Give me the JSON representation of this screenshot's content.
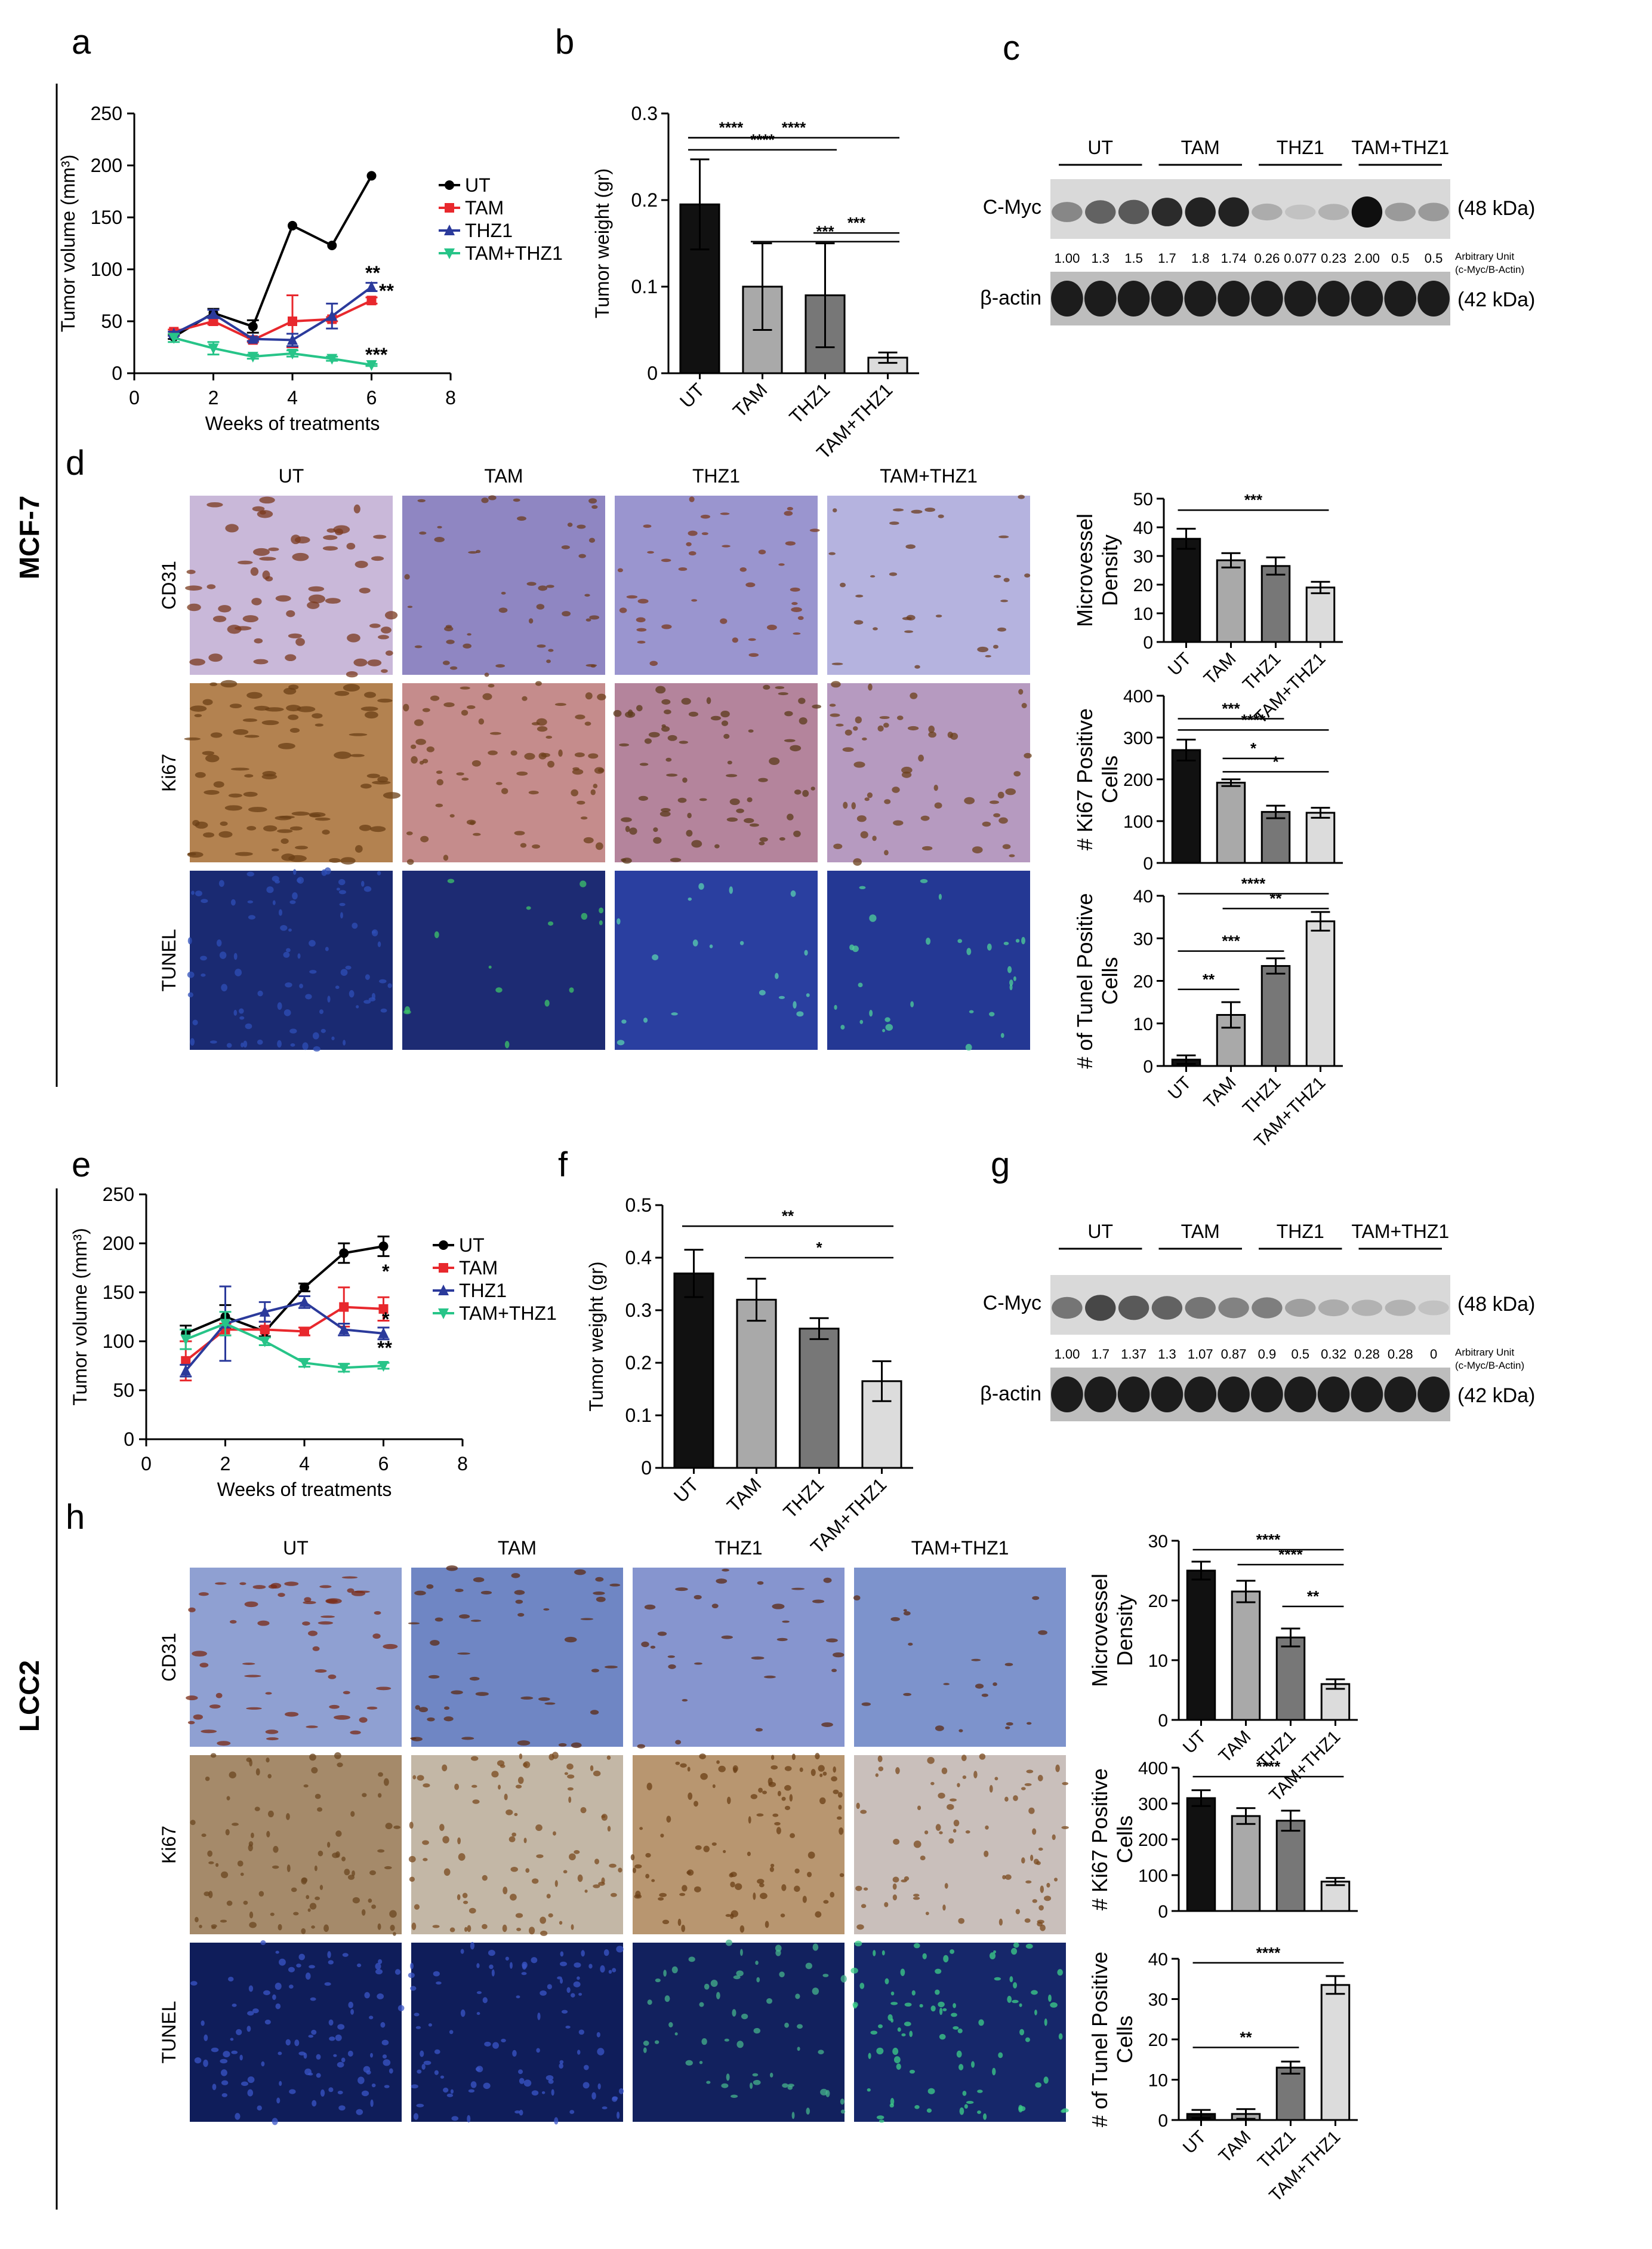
{
  "groups": [
    {
      "name": "MCF-7"
    },
    {
      "name": "LCC2"
    }
  ],
  "panel_letters": [
    "a",
    "b",
    "c",
    "d",
    "e",
    "f",
    "g",
    "h"
  ],
  "colors": {
    "UT": "#000000",
    "TAM": "#e8282d",
    "THZ1": "#2b3a9b",
    "TAM+THZ1": "#27c488",
    "bar_UT": "#111111",
    "bar_TAM": "#a9a9a9",
    "bar_THZ1": "#777777",
    "bar_TAMTHZ1": "#dcdcdc"
  },
  "chart_data": [
    {
      "id": "a",
      "type": "line",
      "xlabel": "Weeks of treatments",
      "ylabel": "Tumor volume (mm³)",
      "xlim": [
        0,
        8
      ],
      "ylim": [
        0,
        250
      ],
      "xticks": [
        0,
        2,
        4,
        6,
        8
      ],
      "yticks": [
        0,
        50,
        100,
        150,
        200,
        250
      ],
      "x": [
        1,
        2,
        3,
        4,
        5,
        6
      ],
      "legend": [
        "UT",
        "TAM",
        "THZ1",
        "TAM+THZ1"
      ],
      "series": [
        {
          "name": "UT",
          "values": [
            35,
            58,
            45,
            142,
            123,
            190
          ],
          "err": [
            2,
            4,
            6,
            0,
            0,
            0
          ]
        },
        {
          "name": "TAM",
          "values": [
            40,
            50,
            32,
            50,
            52,
            70
          ],
          "err": [
            2,
            3,
            2,
            25,
            2,
            3
          ]
        },
        {
          "name": "THZ1",
          "values": [
            38,
            57,
            33,
            32,
            55,
            83
          ],
          "err": [
            2,
            4,
            2,
            6,
            12,
            4
          ]
        },
        {
          "name": "TAM+THZ1",
          "values": [
            34,
            24,
            16,
            19,
            14,
            8
          ],
          "err": [
            4,
            6,
            2,
            3,
            2,
            1
          ]
        }
      ],
      "annotations": [
        "**",
        "**",
        "***"
      ]
    },
    {
      "id": "b",
      "type": "bar",
      "ylabel": "Tumor weight (gr)",
      "ylim": [
        0,
        0.3
      ],
      "yticks": [
        "0",
        "0.1",
        "0.2",
        "0.3"
      ],
      "categories": [
        "UT",
        "TAM",
        "THZ1",
        "TAM+THZ1"
      ],
      "values": [
        0.195,
        0.1,
        0.09,
        0.018
      ],
      "err": [
        0.052,
        0.05,
        0.06,
        0.006
      ],
      "brackets": [
        {
          "l": 0,
          "r": 1,
          "y": 0.272,
          "t": "****"
        },
        {
          "l": 0,
          "r": 2,
          "y": 0.258,
          "t": "****"
        },
        {
          "l": 0,
          "r": 3,
          "y": 0.272,
          "t": "****"
        },
        {
          "l": 2,
          "r": 3,
          "y": 0.162,
          "t": "***"
        },
        {
          "l": 1,
          "r": 3,
          "y": 0.152,
          "t": "***"
        }
      ]
    },
    {
      "id": "c",
      "type": "table",
      "title": "Western blot",
      "groups": [
        "UT",
        "TAM",
        "THZ1",
        "TAM+THZ1"
      ],
      "rows": [
        "C-Myc",
        "β-actin"
      ],
      "sizes": [
        "(48 kDa)",
        "(42 kDa)"
      ],
      "values": [
        "1.00",
        "1.3",
        "1.5",
        "1.7",
        "1.8",
        "1.74",
        "0.26",
        "0.077",
        "0.23",
        "2.00",
        "0.5",
        "0.5"
      ],
      "unit_label": [
        "Arbitrary Unit",
        "(c-Myc/B-Actin)"
      ],
      "intensity": [
        0.35,
        0.55,
        0.6,
        0.85,
        0.9,
        0.9,
        0.15,
        0.03,
        0.12,
        1.0,
        0.25,
        0.25
      ]
    },
    {
      "id": "d_mvd",
      "type": "bar",
      "ylabel": "Microvessel Density",
      "ylim": [
        0,
        50
      ],
      "yticks": [
        "0",
        "10",
        "20",
        "30",
        "40",
        "50"
      ],
      "categories": [
        "UT",
        "TAM",
        "THZ1",
        "TAM+THZ1"
      ],
      "values": [
        36,
        28.5,
        26.5,
        19
      ],
      "err": [
        3.5,
        2.5,
        3,
        2
      ],
      "brackets": [
        {
          "l": 0,
          "r": 3,
          "y": 46,
          "t": "***"
        }
      ]
    },
    {
      "id": "d_ki67",
      "type": "bar",
      "ylabel": "# Ki67 Positive Cells",
      "ylim": [
        0,
        400
      ],
      "yticks": [
        "0",
        "100",
        "200",
        "300",
        "400"
      ],
      "categories": [
        "UT",
        "TAM",
        "THZ1",
        "TAM+THZ1"
      ],
      "values": [
        270,
        192,
        122,
        120
      ],
      "err": [
        25,
        8,
        15,
        12
      ],
      "brackets": [
        {
          "l": 0,
          "r": 2,
          "y": 345,
          "t": "***"
        },
        {
          "l": 0,
          "r": 3,
          "y": 318,
          "t": "****"
        },
        {
          "l": 1,
          "r": 2,
          "y": 250,
          "t": "*"
        },
        {
          "l": 1,
          "r": 3,
          "y": 218,
          "t": "*"
        }
      ]
    },
    {
      "id": "d_tunel",
      "type": "bar",
      "ylabel": "# of Tunel Positive Cells",
      "ylim": [
        0,
        40
      ],
      "yticks": [
        "0",
        "10",
        "20",
        "30",
        "40"
      ],
      "categories": [
        "UT",
        "TAM",
        "THZ1",
        "TAM+THZ1"
      ],
      "values": [
        1.5,
        12,
        23.5,
        34
      ],
      "err": [
        1,
        3,
        1.8,
        2.2
      ],
      "brackets": [
        {
          "l": 0,
          "r": 3,
          "y": 40.5,
          "t": "****"
        },
        {
          "l": 1,
          "r": 3,
          "y": 37,
          "t": "**"
        },
        {
          "l": 0,
          "r": 2,
          "y": 27,
          "t": "***"
        },
        {
          "l": 0,
          "r": 1,
          "y": 18,
          "t": "**"
        }
      ]
    },
    {
      "id": "e",
      "type": "line",
      "xlabel": "Weeks of treatments",
      "ylabel": "Tumor volume (mm³)",
      "xlim": [
        0,
        8
      ],
      "ylim": [
        0,
        250
      ],
      "xticks": [
        0,
        2,
        4,
        6,
        8
      ],
      "yticks": [
        0,
        50,
        100,
        150,
        200,
        250
      ],
      "x": [
        1,
        2,
        3,
        4,
        5,
        6
      ],
      "legend": [
        "UT",
        "TAM",
        "THZ1",
        "TAM+THZ1"
      ],
      "series": [
        {
          "name": "UT",
          "values": [
            108,
            125,
            110,
            155,
            190,
            197
          ],
          "err": [
            8,
            12,
            5,
            4,
            10,
            10
          ]
        },
        {
          "name": "TAM",
          "values": [
            80,
            112,
            112,
            110,
            135,
            133
          ],
          "err": [
            20,
            6,
            8,
            4,
            20,
            12
          ]
        },
        {
          "name": "THZ1",
          "values": [
            70,
            118,
            130,
            140,
            112,
            108
          ],
          "err": [
            6,
            38,
            10,
            6,
            6,
            6
          ]
        },
        {
          "name": "TAM+THZ1",
          "values": [
            102,
            118,
            100,
            78,
            73,
            75
          ],
          "err": [
            10,
            12,
            4,
            4,
            4,
            3
          ]
        }
      ],
      "annotations": [
        "*",
        "*",
        "**"
      ]
    },
    {
      "id": "f",
      "type": "bar",
      "ylabel": "Tumor weight (gr)",
      "ylim": [
        0,
        0.5
      ],
      "yticks": [
        "0",
        "0.1",
        "0.2",
        "0.3",
        "0.4",
        "0.5"
      ],
      "categories": [
        "UT",
        "TAM",
        "THZ1",
        "TAM+THZ1"
      ],
      "values": [
        0.37,
        0.32,
        0.265,
        0.165
      ],
      "err": [
        0.045,
        0.04,
        0.02,
        0.038
      ],
      "brackets": [
        {
          "l": 0,
          "r": 3,
          "y": 0.46,
          "t": "**"
        },
        {
          "l": 1,
          "r": 3,
          "y": 0.4,
          "t": "*"
        }
      ]
    },
    {
      "id": "g",
      "type": "table",
      "title": "Western blot",
      "groups": [
        "UT",
        "TAM",
        "THZ1",
        "TAM+THZ1"
      ],
      "rows": [
        "C-Myc",
        "β-actin"
      ],
      "sizes": [
        "(48 kDa)",
        "(42 kDa)"
      ],
      "values": [
        "1.00",
        "1.7",
        "1.37",
        "1.3",
        "1.07",
        "0.87",
        "0.9",
        "0.5",
        "0.32",
        "0.28",
        "0.28",
        "0"
      ],
      "unit_label": [
        "Arbitrary Unit",
        "(c-Myc/B-Actin)"
      ],
      "intensity": [
        0.45,
        0.7,
        0.6,
        0.55,
        0.45,
        0.38,
        0.4,
        0.22,
        0.15,
        0.12,
        0.12,
        0.03
      ]
    },
    {
      "id": "h_mvd",
      "type": "bar",
      "ylabel": "Microvessel Density",
      "ylim": [
        0,
        30
      ],
      "yticks": [
        "0",
        "10",
        "20",
        "30"
      ],
      "categories": [
        "UT",
        "TAM",
        "THZ1",
        "TAM+THZ1"
      ],
      "values": [
        25,
        21.5,
        13.8,
        6
      ],
      "err": [
        1.5,
        1.8,
        1.5,
        0.8
      ],
      "brackets": [
        {
          "l": 0,
          "r": 3,
          "y": 28.5,
          "t": "****"
        },
        {
          "l": 1,
          "r": 3,
          "y": 26,
          "t": "****"
        },
        {
          "l": 2,
          "r": 3,
          "y": 19,
          "t": "**"
        }
      ]
    },
    {
      "id": "h_ki67",
      "type": "bar",
      "ylabel": "# Ki67 Positive Cells",
      "ylim": [
        0,
        400
      ],
      "yticks": [
        "0",
        "100",
        "200",
        "300",
        "400"
      ],
      "categories": [
        "UT",
        "TAM",
        "THZ1",
        "TAM+THZ1"
      ],
      "values": [
        315,
        265,
        252,
        82
      ],
      "err": [
        22,
        22,
        28,
        10
      ],
      "brackets": [
        {
          "l": 0,
          "r": 3,
          "y": 375,
          "t": "****"
        }
      ]
    },
    {
      "id": "h_tunel",
      "type": "bar",
      "ylabel": "# of Tunel Positive Cells",
      "ylim": [
        0,
        40
      ],
      "yticks": [
        "0",
        "10",
        "20",
        "30",
        "40"
      ],
      "categories": [
        "UT",
        "TAM",
        "THZ1",
        "TAM+THZ1"
      ],
      "values": [
        1.5,
        1.5,
        13,
        33.5
      ],
      "err": [
        1,
        1.2,
        1.5,
        2.2
      ],
      "brackets": [
        {
          "l": 0,
          "r": 3,
          "y": 39,
          "t": "****"
        },
        {
          "l": 0,
          "r": 2,
          "y": 18,
          "t": "**"
        }
      ]
    }
  ],
  "micrographs": [
    {
      "group": "MCF-7",
      "columns": [
        "UT",
        "TAM",
        "THZ1",
        "TAM+THZ1"
      ],
      "rows": [
        "CD31",
        "Ki67",
        "TUNEL"
      ]
    },
    {
      "group": "LCC2",
      "columns": [
        "UT",
        "TAM",
        "THZ1",
        "TAM+THZ1"
      ],
      "rows": [
        "CD31",
        "Ki67",
        "TUNEL"
      ]
    }
  ]
}
